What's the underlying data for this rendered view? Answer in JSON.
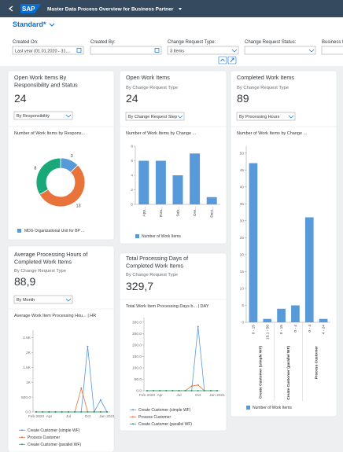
{
  "shell": {
    "logo": "SAP",
    "title": "Master Data Process Overview for Business Partner"
  },
  "variant": "Standard*",
  "filters": [
    {
      "label": "Created On:",
      "value": "Last year (01.01.2020 - 31...."
    },
    {
      "label": "Created By:"
    },
    {
      "label": "Change Request Type:",
      "value": "3 Items"
    },
    {
      "label": "Change Request Status:"
    },
    {
      "label": "Business R"
    }
  ],
  "cards": [
    {
      "title": "Open Work Items By Responsibility and Status",
      "kpi": 24,
      "selector": "By Responsibility",
      "chart": {
        "type": "donut",
        "title": "Number of Work Items by Respons...",
        "values": [
          3,
          13,
          8
        ],
        "colors": [
          "#5899da",
          "#e8743b",
          "#19a979"
        ],
        "legend": "MDG Organizational Unit for BP ..."
      }
    },
    {
      "title": "Open Work Items",
      "subtitle": "By Change Request Type",
      "kpi": 24,
      "selector": "By Change Request Step",
      "chart": {
        "type": "bar",
        "title": "Number of Work Items by Change ...",
        "groups": [
          {
            "categories": [
              "App...",
              "Rou...",
              "Sub...",
              "Ore...",
              "Deci..."
            ],
            "values": [
              6,
              6,
              4,
              7,
              1
            ]
          }
        ],
        "ylim": [
          0,
          8
        ],
        "yticks": [
          0,
          2,
          4,
          6,
          8
        ],
        "color": "#5899da",
        "legend": "Number of Work Items"
      }
    },
    {
      "title": "Completed Work Items",
      "subtitle": "By Change Request Type",
      "kpi": 89,
      "selector": "By Processing Hours",
      "chart": {
        "type": "bar",
        "title": "Number of Work Items by Change ...",
        "groups": [
          {
            "label": "Create Customer (simple WF)",
            "categories": [
              "0 - 15",
              "15.1 - 50"
            ],
            "values": [
              47,
              1
            ]
          },
          {
            "label": "Create Customer (parallel WF)",
            "categories": [
              "0 - 15",
              "0 - 4"
            ],
            "values": [
              4,
              5
            ]
          },
          {
            "label": "Process Customer",
            "categories": [
              "0 - 4",
              "4 - 24"
            ],
            "values": [
              31,
              1
            ]
          }
        ],
        "ylim": [
          0,
          52
        ],
        "yticks": [
          0,
          5,
          10,
          15,
          20,
          25,
          30,
          35,
          40,
          45,
          50
        ],
        "color": "#5899da",
        "legend": "Number of Work Items"
      }
    },
    {
      "title": "Average Processing Hours of Completed Work Items",
      "subtitle": "By Change Request Type",
      "kpi": "88,9",
      "selector": "By Month",
      "chart": {
        "type": "line",
        "title": "Average Work Item Processing Hou... | HR",
        "categories": [
          "Feb 2020",
          null,
          "Apr",
          null,
          null,
          "Jul",
          null,
          null,
          "Oct",
          null,
          null,
          "Jan 2021"
        ],
        "ylim": [
          0,
          2750
        ],
        "yticks": [
          {
            "value": 0,
            "label": "0.0"
          },
          {
            "value": 500,
            "label": "500.0"
          },
          {
            "value": 1000,
            "label": "1K"
          },
          {
            "value": 1500,
            "label": "1.5K"
          },
          {
            "value": 2000,
            "label": "2K"
          },
          {
            "value": 2500,
            "label": "2.5K"
          }
        ],
        "series": [
          {
            "name": "Create Customer (simple WF)",
            "color": "#5899da",
            "values": [
              0,
              0,
              0,
              0,
              0,
              0,
              0,
              0,
              2200,
              0,
              400,
              0
            ]
          },
          {
            "name": "Process Customer",
            "color": "#e8743b",
            "values": [
              0,
              0,
              0,
              0,
              0,
              0,
              0,
              800,
              0,
              0,
              0,
              0
            ]
          },
          {
            "name": "Create Customer (parallel WF)",
            "color": "#19a979",
            "values": [
              0,
              0,
              0,
              0,
              0,
              0,
              0,
              0,
              0,
              0,
              0,
              0
            ]
          }
        ]
      }
    },
    {
      "title": "Total Processing Days of Completed Work Items",
      "subtitle": "By Change Request Type",
      "kpi": "329,7",
      "chart": {
        "type": "line",
        "title": "Total Work Item Processing Days b... | DAY",
        "categories": [
          "Feb 2020",
          null,
          "Apr",
          null,
          null,
          "Jul",
          null,
          null,
          "Oct",
          null,
          null,
          "Jan 2021"
        ],
        "ylim": [
          0,
          320
        ],
        "yticks": [
          {
            "value": 0,
            "label": "0.0"
          },
          {
            "value": 50,
            "label": "50.0"
          },
          {
            "value": 100,
            "label": "100.0"
          },
          {
            "value": 150,
            "label": "150.0"
          },
          {
            "value": 200,
            "label": "200.0"
          },
          {
            "value": 250,
            "label": "250.0"
          },
          {
            "value": 300,
            "label": "300.0"
          }
        ],
        "series": [
          {
            "name": "Create Customer (simple WF)",
            "color": "#5899da",
            "values": [
              0,
              0,
              0,
              0,
              0,
              0,
              0,
              0,
              280,
              0,
              0,
              0
            ]
          },
          {
            "name": "Process Customer",
            "color": "#e8743b",
            "values": [
              0,
              0,
              0,
              0,
              0,
              0,
              0,
              20,
              25,
              0,
              0,
              0
            ]
          },
          {
            "name": "Create Customer (parallel WF)",
            "color": "#19a979",
            "values": [
              0,
              0,
              0,
              0,
              0,
              0,
              0,
              0,
              0,
              0,
              0,
              0
            ]
          }
        ]
      }
    }
  ]
}
